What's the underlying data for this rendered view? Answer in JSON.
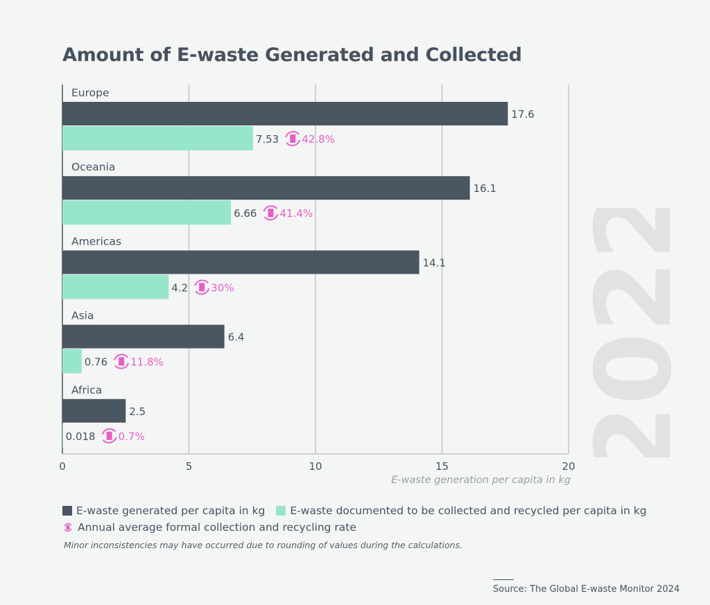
{
  "chart_data": {
    "type": "bar",
    "orientation": "horizontal",
    "title": "Amount of E-waste Generated and Collected",
    "xlabel": "E-waste generation per capita in kg",
    "xlim": [
      0,
      20
    ],
    "xticks": [
      "0",
      "5",
      "10",
      "15",
      "20"
    ],
    "grid": true,
    "categories": [
      "Europe",
      "Oceania",
      "Americas",
      "Asia",
      "Africa"
    ],
    "series": [
      {
        "name": "E-waste generated per capita in kg",
        "color": "#4a5661",
        "values": [
          17.6,
          16.1,
          14.1,
          6.4,
          2.5
        ],
        "labels": [
          "17.6",
          "16.1",
          "14.1",
          "6.4",
          "2.5"
        ]
      },
      {
        "name": "E-waste documented to be collected and recycled per capita in kg",
        "color": "#97e6cc",
        "values": [
          7.53,
          6.66,
          4.2,
          0.76,
          0.018
        ],
        "labels": [
          "7.53",
          "6.66",
          "4.2",
          "0.76",
          "0.018"
        ]
      }
    ],
    "rates": {
      "name": "Annual average formal collection and recycling rate",
      "color": "#e65fc6",
      "labels": [
        "42.8%",
        "41.4%",
        "30%",
        "11.8%",
        "0.7%"
      ]
    },
    "legend_position": "bottom",
    "watermark": "2022"
  },
  "note": "Minor inconsistencies may have occurred due to rounding of values during the calculations.",
  "source": "Source: The Global E-waste Monitor 2024"
}
